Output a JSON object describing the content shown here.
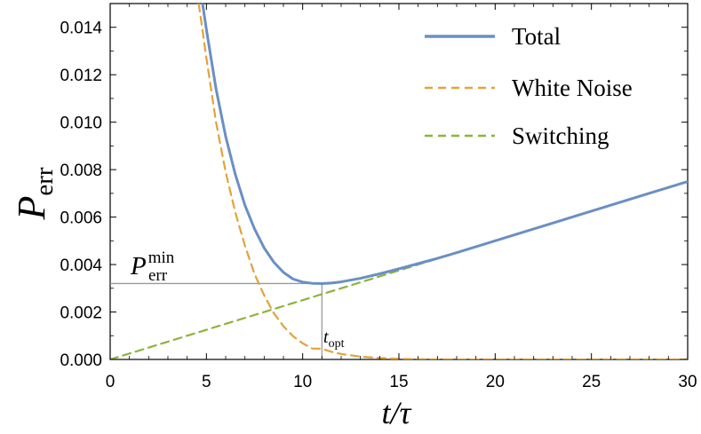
{
  "chart_data": {
    "type": "line",
    "title": "",
    "xlabel": "t/τ",
    "ylabel": "P_err",
    "ylabel_main": "P",
    "ylabel_sub": "err",
    "xlim": [
      0,
      30
    ],
    "ylim": [
      0,
      0.015
    ],
    "x_ticks": [
      0,
      5,
      10,
      15,
      20,
      25,
      30
    ],
    "x_tick_labels": [
      "0",
      "5",
      "10",
      "15",
      "20",
      "25",
      "30"
    ],
    "y_ticks": [
      0,
      0.002,
      0.004,
      0.006,
      0.008,
      0.01,
      0.012,
      0.014
    ],
    "y_tick_labels": [
      "0.000",
      "0.002",
      "0.004",
      "0.006",
      "0.008",
      "0.010",
      "0.012",
      "0.014"
    ],
    "grid": false,
    "legend_position": "top-right",
    "series": [
      {
        "name": "Total",
        "style": "solid",
        "color": "#6a8fc4",
        "x": [
          4.8,
          5,
          5.5,
          6,
          6.5,
          7,
          7.5,
          8,
          8.5,
          9,
          9.5,
          10,
          10.5,
          11,
          11.5,
          12,
          13,
          14,
          15,
          16,
          17,
          18,
          20,
          22,
          24,
          26,
          28,
          30
        ],
        "y": [
          0.015,
          0.0139,
          0.0114,
          0.0094,
          0.0078,
          0.0065,
          0.0055,
          0.0047,
          0.0041,
          0.00367,
          0.00339,
          0.00326,
          0.00321,
          0.0032,
          0.00322,
          0.00327,
          0.00342,
          0.00361,
          0.00382,
          0.00404,
          0.00426,
          0.0045,
          0.005,
          0.0055,
          0.006,
          0.0065,
          0.007,
          0.0075
        ]
      },
      {
        "name": "White Noise",
        "style": "dashed",
        "color": "#e1a33b",
        "x": [
          4.6,
          5,
          5.5,
          6,
          6.5,
          7,
          7.5,
          8,
          8.5,
          9,
          9.5,
          10,
          10.5,
          11,
          11.5,
          12,
          13,
          14,
          15,
          16,
          18,
          20,
          25,
          30
        ],
        "y": [
          0.015,
          0.0127,
          0.01,
          0.0079,
          0.0062,
          0.0048,
          0.0036,
          0.0027,
          0.00195,
          0.0014,
          0.00098,
          0.00068,
          0.00046,
          0.00045,
          0.00032,
          0.00023,
          0.00012,
          6e-05,
          3e-05,
          1e-05,
          0,
          0,
          0,
          0
        ]
      },
      {
        "name": "Switching",
        "style": "dashed",
        "color": "#8db33d",
        "x": [
          0,
          30
        ],
        "y": [
          0,
          0.0075
        ]
      }
    ],
    "annotations": {
      "p_min_main": "P",
      "p_min_sub": "err",
      "p_min_sup": "min",
      "t_opt_main": "t",
      "t_opt_sub": "opt",
      "t_opt_x": 11,
      "p_min_y": 0.0032
    }
  }
}
